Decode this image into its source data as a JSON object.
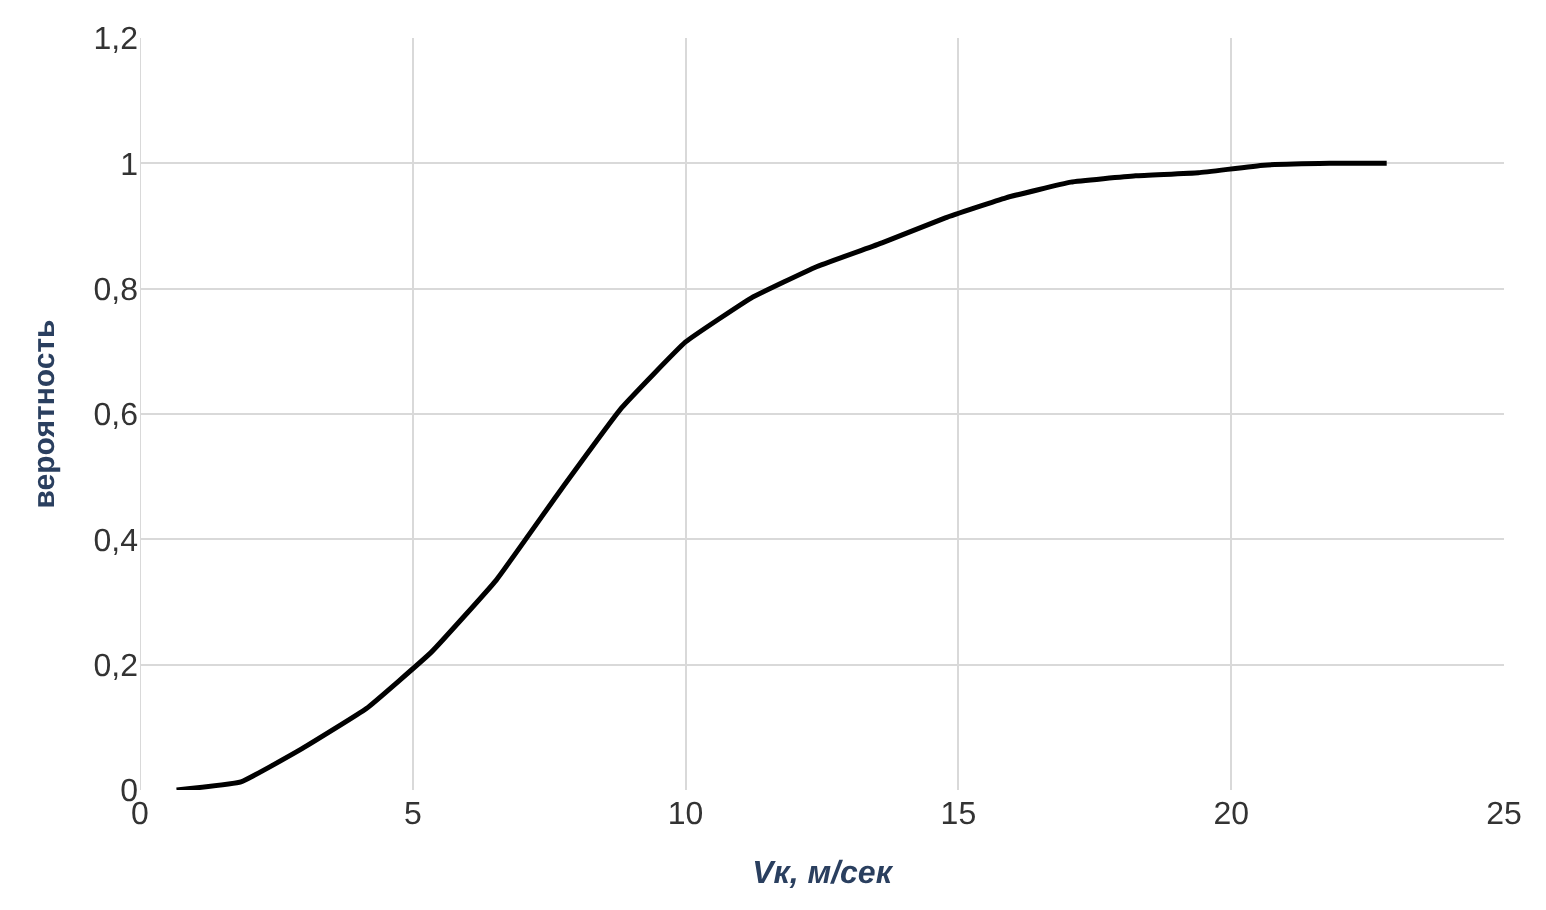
{
  "chart_data": {
    "type": "line",
    "xlabel": "Vк, м/сек",
    "ylabel": "вероятность",
    "x": [
      0.67,
      1.85,
      2.97,
      4.15,
      5.34,
      6.53,
      7.64,
      8.83,
      10.0,
      11.2,
      12.4,
      13.6,
      14.76,
      15.87,
      17.06,
      18.25,
      19.4,
      20.6,
      21.8,
      22.85
    ],
    "series": [
      {
        "color": "#000000",
        "values": [
          0.0,
          0.013,
          0.066,
          0.13,
          0.22,
          0.335,
          0.47,
          0.61,
          0.715,
          0.785,
          0.835,
          0.873,
          0.913,
          0.945,
          0.97,
          0.98,
          0.985,
          0.997,
          1.0,
          1.0
        ]
      }
    ],
    "xlim": [
      0,
      25
    ],
    "xticks": [
      0,
      5,
      10,
      15,
      20,
      25
    ],
    "ylim": [
      0,
      1.2
    ],
    "yticks": [
      0,
      {
        "value": 0.2,
        "label": "0,2"
      },
      {
        "value": 0.4,
        "label": "0,4"
      },
      {
        "value": 0.6,
        "label": "0,6"
      },
      {
        "value": 0.8,
        "label": "0,8"
      },
      1,
      {
        "value": 1.2,
        "label": "1,2"
      }
    ],
    "grid": true,
    "legend": false,
    "marker": "none",
    "line_style": "solid"
  }
}
